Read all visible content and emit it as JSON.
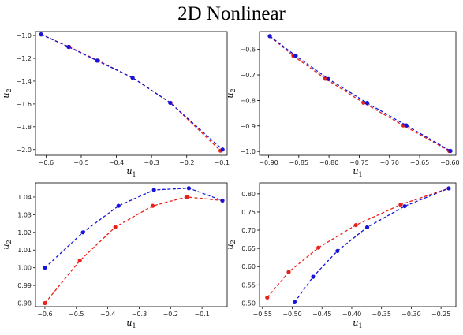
{
  "figure": {
    "title": "2D Nonlinear"
  },
  "chart_data": [
    {
      "type": "line",
      "position": "top-left",
      "xlabel": "u1",
      "ylabel": "u2",
      "xlim": [
        -0.63,
        -0.085
      ],
      "ylim": [
        -2.05,
        -0.965
      ],
      "xticks": [
        -0.6,
        -0.5,
        -0.4,
        -0.3,
        -0.2,
        -0.1
      ],
      "yticks": [
        -2.0,
        -1.8,
        -1.6,
        -1.4,
        -1.2,
        -1.0
      ],
      "xtick_labels": [
        "−0.6",
        "−0.5",
        "−0.4",
        "−0.3",
        "−0.2",
        "−0.1"
      ],
      "ytick_labels": [
        "−2.0",
        "−1.8",
        "−1.6",
        "−1.4",
        "−1.2",
        "−1.0"
      ],
      "series": [
        {
          "color": "#e8221a",
          "x": [
            -0.614,
            -0.534,
            -0.452,
            -0.354,
            -0.246,
            -0.104
          ],
          "y": [
            -0.99,
            -1.1,
            -1.22,
            -1.37,
            -1.59,
            -2.01
          ]
        },
        {
          "color": "#1515d8",
          "x": [
            -0.614,
            -0.536,
            -0.455,
            -0.354,
            -0.247,
            -0.098
          ],
          "y": [
            -0.99,
            -1.1,
            -1.22,
            -1.37,
            -1.59,
            -2.0
          ]
        }
      ]
    },
    {
      "type": "line",
      "position": "top-right",
      "xlabel": "u1",
      "ylabel": "u2",
      "xlim": [
        -0.915,
        -0.59
      ],
      "ylim": [
        -1.015,
        -0.53
      ],
      "xticks": [
        -0.9,
        -0.85,
        -0.8,
        -0.75,
        -0.7,
        -0.65,
        -0.6
      ],
      "yticks": [
        -1.0,
        -0.9,
        -0.8,
        -0.7,
        -0.6
      ],
      "xtick_labels": [
        "−0.90",
        "−0.85",
        "−0.80",
        "−0.75",
        "−0.70",
        "−0.65",
        "−0.60"
      ],
      "ytick_labels": [
        "−1.0",
        "−0.9",
        "−0.8",
        "−0.7",
        "−0.6"
      ],
      "series": [
        {
          "color": "#e8221a",
          "x": [
            -0.898,
            -0.859,
            -0.806,
            -0.743,
            -0.677,
            -0.601
          ],
          "y": [
            -0.548,
            -0.625,
            -0.715,
            -0.809,
            -0.898,
            -0.998
          ]
        },
        {
          "color": "#1515d8",
          "x": [
            -0.898,
            -0.855,
            -0.801,
            -0.737,
            -0.672,
            -0.599
          ],
          "y": [
            -0.548,
            -0.625,
            -0.716,
            -0.81,
            -0.898,
            -0.998
          ]
        }
      ]
    },
    {
      "type": "line",
      "position": "bottom-left",
      "xlabel": "u1",
      "ylabel": "u2",
      "xlim": [
        -0.63,
        -0.02
      ],
      "ylim": [
        0.978,
        1.048
      ],
      "xticks": [
        -0.6,
        -0.5,
        -0.4,
        -0.3,
        -0.2,
        -0.1
      ],
      "yticks": [
        0.98,
        0.99,
        1.0,
        1.01,
        1.02,
        1.03,
        1.04
      ],
      "xtick_labels": [
        "−0.6",
        "−0.5",
        "−0.4",
        "−0.3",
        "−0.2",
        "−0.1"
      ],
      "ytick_labels": [
        "0.98",
        "0.99",
        "1.00",
        "1.01",
        "1.02",
        "1.03",
        "1.04"
      ],
      "series": [
        {
          "color": "#e8221a",
          "x": [
            -0.6,
            -0.489,
            -0.376,
            -0.257,
            -0.148,
            -0.035
          ],
          "y": [
            0.98,
            1.004,
            1.023,
            1.035,
            1.04,
            1.038
          ]
        },
        {
          "color": "#1515d8",
          "x": [
            -0.6,
            -0.479,
            -0.366,
            -0.253,
            -0.142,
            -0.035
          ],
          "y": [
            1.0,
            1.02,
            1.035,
            1.044,
            1.045,
            1.038
          ]
        }
      ]
    },
    {
      "type": "line",
      "position": "bottom-right",
      "xlabel": "u1",
      "ylabel": "u2",
      "xlim": [
        -0.555,
        -0.225
      ],
      "ylim": [
        0.49,
        0.83
      ],
      "xticks": [
        -0.55,
        -0.5,
        -0.45,
        -0.4,
        -0.35,
        -0.3,
        -0.25
      ],
      "yticks": [
        0.5,
        0.55,
        0.6,
        0.65,
        0.7,
        0.75,
        0.8
      ],
      "xtick_labels": [
        "−0.55",
        "−0.50",
        "−0.45",
        "−0.40",
        "−0.35",
        "−0.30",
        "−0.25"
      ],
      "ytick_labels": [
        "0.50",
        "0.55",
        "0.60",
        "0.65",
        "0.70",
        "0.75",
        "0.80"
      ],
      "series": [
        {
          "color": "#e8221a",
          "x": [
            -0.542,
            -0.506,
            -0.456,
            -0.393,
            -0.318,
            -0.237
          ],
          "y": [
            0.515,
            0.585,
            0.652,
            0.714,
            0.77,
            0.815
          ]
        },
        {
          "color": "#1515d8",
          "x": [
            -0.496,
            -0.465,
            -0.424,
            -0.374,
            -0.311,
            -0.237
          ],
          "y": [
            0.502,
            0.572,
            0.643,
            0.708,
            0.766,
            0.815
          ]
        }
      ]
    }
  ]
}
